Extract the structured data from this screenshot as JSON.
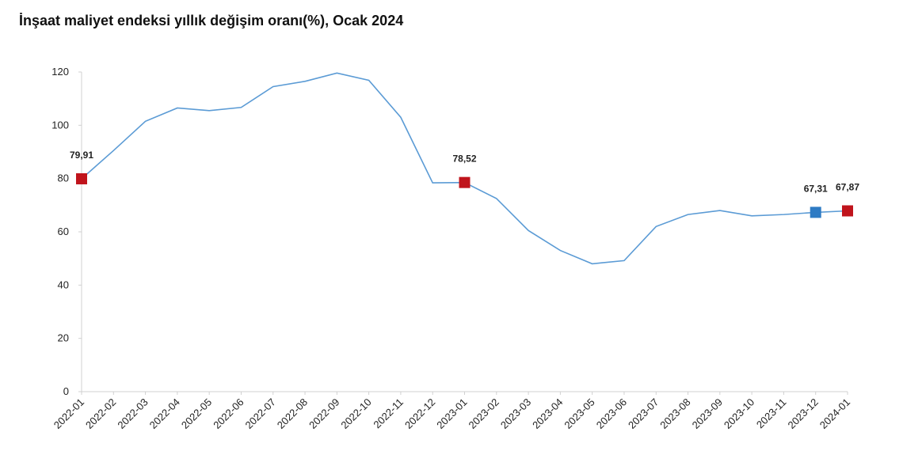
{
  "chart_data": {
    "type": "line",
    "title": "İnşaat maliyet endeksi yıllık değişim oranı(%), Ocak 2024",
    "categories": [
      "2022-01",
      "2022-02",
      "2022-03",
      "2022-04",
      "2022-05",
      "2022-06",
      "2022-07",
      "2022-08",
      "2022-09",
      "2022-10",
      "2022-11",
      "2022-12",
      "2023-01",
      "2023-02",
      "2023-03",
      "2023-04",
      "2023-05",
      "2023-06",
      "2023-07",
      "2023-08",
      "2023-09",
      "2023-10",
      "2023-11",
      "2023-12",
      "2024-01"
    ],
    "values": [
      79.91,
      90.5,
      101.5,
      106.5,
      105.5,
      106.7,
      114.5,
      116.5,
      119.6,
      116.9,
      103,
      78.4,
      78.52,
      72.5,
      60.5,
      53,
      48,
      49.2,
      62,
      66.5,
      68,
      66,
      66.5,
      67.31,
      67.87
    ],
    "value_labels": [
      "79,91",
      null,
      null,
      null,
      null,
      null,
      null,
      null,
      null,
      null,
      null,
      null,
      "78,52",
      null,
      null,
      null,
      null,
      null,
      null,
      null,
      null,
      null,
      null,
      "67,31",
      "67,87"
    ],
    "marker_colors": [
      "#c0141c",
      null,
      null,
      null,
      null,
      null,
      null,
      null,
      null,
      null,
      null,
      null,
      "#c0141c",
      null,
      null,
      null,
      null,
      null,
      null,
      null,
      null,
      null,
      null,
      "#2e7bc4",
      "#c0141c"
    ],
    "color": "#5b9bd5",
    "ylim": [
      0,
      120
    ],
    "yticks": [
      0,
      20,
      40,
      60,
      80,
      100,
      120
    ],
    "grid": false
  }
}
